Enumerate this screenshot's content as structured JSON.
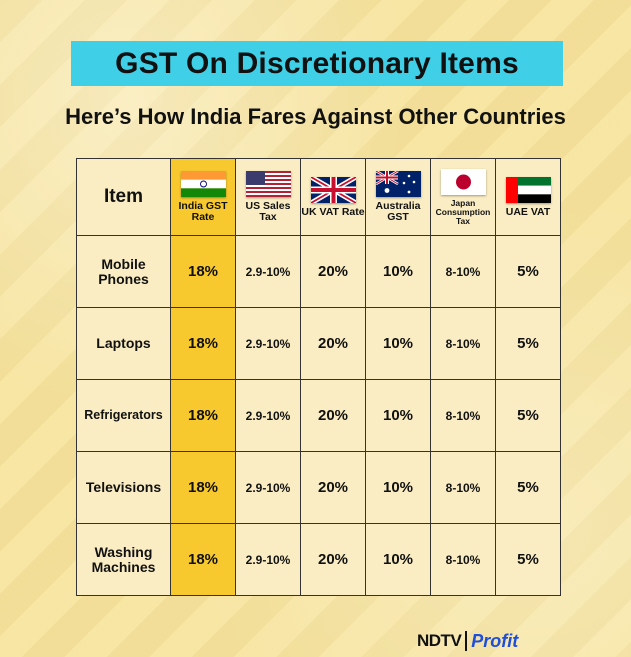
{
  "title": "GST On Discretionary Items",
  "subtitle": "Here’s How India Fares Against Other Countries",
  "colors": {
    "title_bg": "#3fd0e7",
    "india_highlight": "#f8c92f",
    "background": "#f6e4a0",
    "profit_blue": "#1d4fd8"
  },
  "table": {
    "item_header": "Item",
    "columns": [
      {
        "flag": "india-flag",
        "label": "India GST Rate"
      },
      {
        "flag": "usa-flag",
        "label": "US Sales Tax"
      },
      {
        "flag": "uk-flag",
        "label": "UK VAT Rate"
      },
      {
        "flag": "australia-flag",
        "label": "Australia GST"
      },
      {
        "flag": "japan-flag",
        "label": "Japan Consumption Tax"
      },
      {
        "flag": "uae-flag",
        "label": "UAE VAT"
      }
    ],
    "rows": [
      {
        "item": "Mobile Phones",
        "values": [
          "18%",
          "2.9-10%",
          "20%",
          "10%",
          "8-10%",
          "5%"
        ]
      },
      {
        "item": "Laptops",
        "values": [
          "18%",
          "2.9-10%",
          "20%",
          "10%",
          "8-10%",
          "5%"
        ]
      },
      {
        "item": "Refrigerators",
        "values": [
          "18%",
          "2.9-10%",
          "20%",
          "10%",
          "8-10%",
          "5%"
        ]
      },
      {
        "item": "Televisions",
        "values": [
          "18%",
          "2.9-10%",
          "20%",
          "10%",
          "8-10%",
          "5%"
        ]
      },
      {
        "item": "Washing Machines",
        "values": [
          "18%",
          "2.9-10%",
          "20%",
          "10%",
          "8-10%",
          "5%"
        ]
      }
    ]
  },
  "logo": {
    "ndtv": "NDTV",
    "profit": "Profit"
  }
}
